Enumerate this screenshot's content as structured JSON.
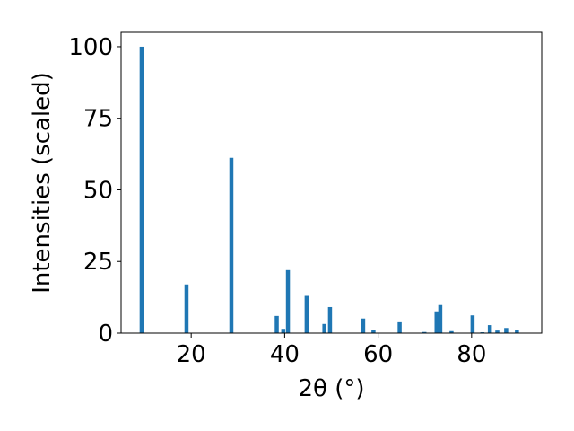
{
  "chart_data": {
    "type": "bar",
    "xlabel": "2θ (°)",
    "ylabel": "Intensities (scaled)",
    "xlim": [
      5,
      95
    ],
    "ylim": [
      0,
      105
    ],
    "xticks": [
      20,
      40,
      60,
      80
    ],
    "yticks": [
      0,
      25,
      50,
      75,
      100
    ],
    "grid": false,
    "bar_color": "#1f77b4",
    "series": [
      {
        "x": [
          9.4,
          19.0,
          28.6,
          38.3,
          39.7,
          40.7,
          44.7,
          48.5,
          49.7,
          56.8,
          59.0,
          64.6,
          69.9,
          72.5,
          73.3,
          75.7,
          80.2,
          82.3,
          83.9,
          85.5,
          87.4,
          89.7
        ],
        "y": [
          100.0,
          17.0,
          61.2,
          6.0,
          1.5,
          22.0,
          13.0,
          3.2,
          9.1,
          5.1,
          1.0,
          3.8,
          0.4,
          7.6,
          9.8,
          0.7,
          6.2,
          0.3,
          2.8,
          0.9,
          1.8,
          1.1
        ]
      }
    ]
  }
}
